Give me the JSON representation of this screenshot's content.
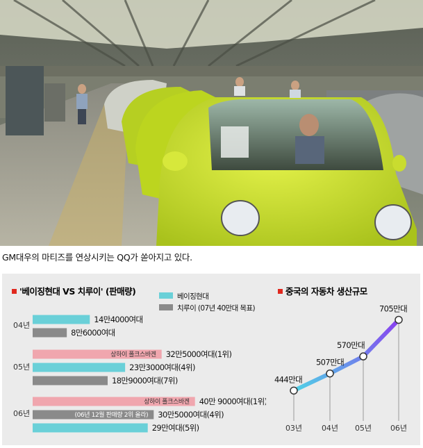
{
  "caption": "GM대우의 마티즈를 연상시키는 QQ가 쏟아지고 있다.",
  "photo": {
    "alt": "",
    "car_color": "#c8e02a"
  },
  "chart_data": [
    {
      "type": "bar",
      "title": "'베이징현대 VS 치루이' (판매량)",
      "legend": [
        {
          "label": "베이징현대",
          "color": "#6ad0d8"
        },
        {
          "label": "치루이 (07년 40만대 목표)",
          "color": "#8a8a8a"
        }
      ],
      "orientation": "horizontal",
      "groups": [
        {
          "year": "04년",
          "bars": [
            {
              "series": "베이징현대",
              "value": 144000,
              "label": "14만4000여대",
              "color": "#6ad0d8"
            },
            {
              "series": "치루이",
              "value": 86000,
              "label": "8만6000여대",
              "color": "#8a8a8a"
            }
          ]
        },
        {
          "year": "05년",
          "bars": [
            {
              "series": "상하이 폴크스바겐",
              "value": 325000,
              "label": "32만5000여대(1위)",
              "color": "#f0a6ae",
              "inner": "상하이 폴크스바겐"
            },
            {
              "series": "베이징현대",
              "value": 233000,
              "label": "23만3000여대(4위)",
              "color": "#6ad0d8"
            },
            {
              "series": "치루이",
              "value": 189000,
              "label": "18만9000여대(7위)",
              "color": "#8a8a8a"
            }
          ]
        },
        {
          "year": "06년",
          "bars": [
            {
              "series": "상하이 폴크스바겐",
              "value": 409000,
              "label": "40만 9000여대(1위)",
              "color": "#f0a6ae",
              "inner": "상하이 폴크스바겐"
            },
            {
              "series": "치루이",
              "value": 305000,
              "label": "30만5000여대(4위)",
              "color": "#8a8a8a",
              "inner": "(06년 12월 판매량 2위 올라)"
            },
            {
              "series": "베이징현대",
              "value": 290000,
              "label": "29만여대(5위)",
              "color": "#6ad0d8"
            }
          ]
        }
      ]
    },
    {
      "type": "line",
      "title": "중국의 자동차 생산규모",
      "categories": [
        "03년",
        "04년",
        "05년",
        "06년"
      ],
      "values": [
        444,
        507,
        570,
        705
      ],
      "value_labels": [
        "444만대",
        "507만대",
        "570만대",
        "705만대"
      ],
      "ylim": [
        350,
        760
      ],
      "line_colors": [
        "#4fd2e6",
        "#8a3ff0"
      ]
    }
  ],
  "title_marker_color": "#e0281e"
}
